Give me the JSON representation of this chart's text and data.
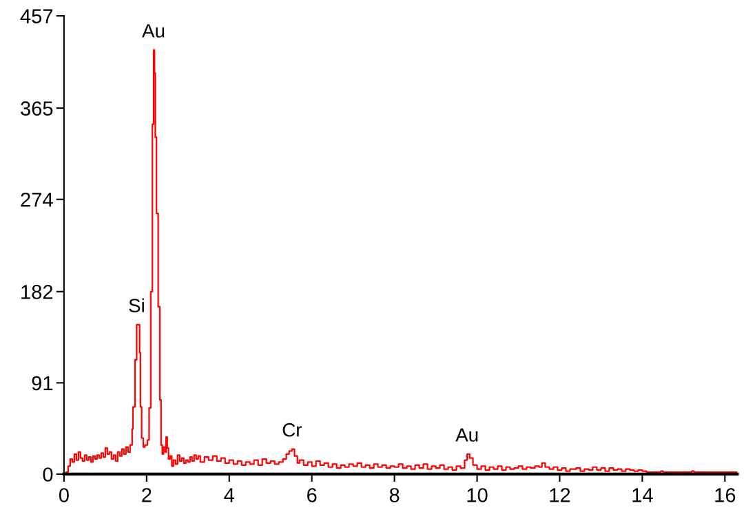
{
  "chart_data": {
    "type": "step",
    "color": "#ff0000",
    "x": [
      0,
      0.05,
      0.1,
      0.15,
      0.2,
      0.25,
      0.3,
      0.35,
      0.4,
      0.45,
      0.5,
      0.55,
      0.6,
      0.65,
      0.7,
      0.75,
      0.8,
      0.85,
      0.9,
      0.95,
      1,
      1.05,
      1.1,
      1.15,
      1.2,
      1.25,
      1.3,
      1.35,
      1.4,
      1.45,
      1.5,
      1.55,
      1.6,
      1.65,
      1.67,
      1.72,
      1.76,
      1.83,
      1.85,
      1.88,
      1.92,
      1.96,
      2.02,
      2.06,
      2.1,
      2.14,
      2.17,
      2.19,
      2.21,
      2.24,
      2.28,
      2.32,
      2.35,
      2.38,
      2.41,
      2.45,
      2.47,
      2.5,
      2.53,
      2.57,
      2.61,
      2.65,
      2.7,
      2.75,
      2.8,
      2.85,
      2.9,
      2.95,
      3,
      3.05,
      3.1,
      3.15,
      3.2,
      3.25,
      3.3,
      3.4,
      3.5,
      3.6,
      3.7,
      3.8,
      3.9,
      4,
      4.1,
      4.2,
      4.3,
      4.4,
      4.5,
      4.6,
      4.7,
      4.8,
      4.9,
      5,
      5.1,
      5.2,
      5.3,
      5.38,
      5.45,
      5.52,
      5.58,
      5.65,
      5.7,
      5.8,
      5.9,
      6,
      6.1,
      6.2,
      6.3,
      6.4,
      6.5,
      6.6,
      6.7,
      6.8,
      6.9,
      7,
      7.1,
      7.2,
      7.3,
      7.4,
      7.5,
      7.6,
      7.7,
      7.8,
      7.9,
      8,
      8.1,
      8.2,
      8.3,
      8.4,
      8.5,
      8.6,
      8.7,
      8.8,
      8.9,
      9,
      9.1,
      9.2,
      9.3,
      9.4,
      9.5,
      9.6,
      9.7,
      9.76,
      9.82,
      9.9,
      10,
      10.1,
      10.2,
      10.3,
      10.4,
      10.5,
      10.6,
      10.7,
      10.8,
      10.9,
      11,
      11.1,
      11.2,
      11.3,
      11.4,
      11.5,
      11.57,
      11.65,
      11.75,
      11.85,
      11.95,
      12.05,
      12.15,
      12.25,
      12.4,
      12.5,
      12.6,
      12.7,
      12.8,
      12.9,
      13,
      13.1,
      13.2,
      13.3,
      13.4,
      13.5,
      13.6,
      13.7,
      13.8,
      13.9,
      14,
      14.1,
      14.4,
      14.45,
      14.5,
      15.15,
      15.2,
      15.25,
      16.3
    ],
    "values": [
      0,
      2,
      8,
      15,
      12,
      20,
      14,
      22,
      16,
      13,
      19,
      14,
      17,
      12,
      18,
      15,
      19,
      16,
      21,
      17,
      26,
      20,
      22,
      15,
      19,
      13,
      22,
      18,
      25,
      20,
      27,
      22,
      29,
      45,
      67,
      114,
      149,
      121,
      67,
      36,
      27,
      29,
      34,
      66,
      182,
      349,
      423,
      400,
      336,
      260,
      167,
      74,
      29,
      20,
      27,
      22,
      37,
      26,
      15,
      18,
      8,
      14,
      10,
      19,
      13,
      16,
      11,
      14,
      12,
      17,
      13,
      19,
      15,
      18,
      12,
      17,
      14,
      18,
      13,
      16,
      11,
      14,
      10,
      13,
      9,
      12,
      10,
      14,
      9,
      15,
      11,
      13,
      10,
      12,
      15,
      20,
      23,
      25,
      18,
      11,
      14,
      9,
      12,
      8,
      13,
      9,
      11,
      7,
      10,
      6,
      9,
      7,
      10,
      8,
      11,
      7,
      9,
      6,
      10,
      7,
      9,
      6,
      8,
      7,
      10,
      6,
      8,
      5,
      9,
      6,
      10,
      5,
      8,
      6,
      9,
      5,
      7,
      4,
      8,
      6,
      14,
      20,
      16,
      9,
      5,
      8,
      4,
      7,
      5,
      8,
      4,
      7,
      5,
      6,
      8,
      5,
      7,
      6,
      8,
      7,
      11,
      7,
      5,
      7,
      4,
      6,
      3,
      5,
      6,
      3,
      5,
      4,
      7,
      4,
      6,
      3,
      6,
      4,
      5,
      3,
      5,
      4,
      3,
      4,
      3,
      2,
      2,
      3,
      2,
      2,
      3,
      2,
      2
    ],
    "xlim": [
      0,
      16.3
    ],
    "ylim": [
      0,
      457
    ],
    "xticks": [
      0,
      2,
      4,
      6,
      8,
      10,
      12,
      14,
      16
    ],
    "yticks": [
      0,
      91,
      182,
      274,
      365,
      457
    ],
    "annotations": [
      {
        "text": "Si",
        "x": 1.76,
        "y": 149
      },
      {
        "text": "Au",
        "x": 2.17,
        "y": 423
      },
      {
        "text": "Cr",
        "x": 5.52,
        "y": 25
      },
      {
        "text": "Au",
        "x": 9.76,
        "y": 20
      }
    ]
  }
}
